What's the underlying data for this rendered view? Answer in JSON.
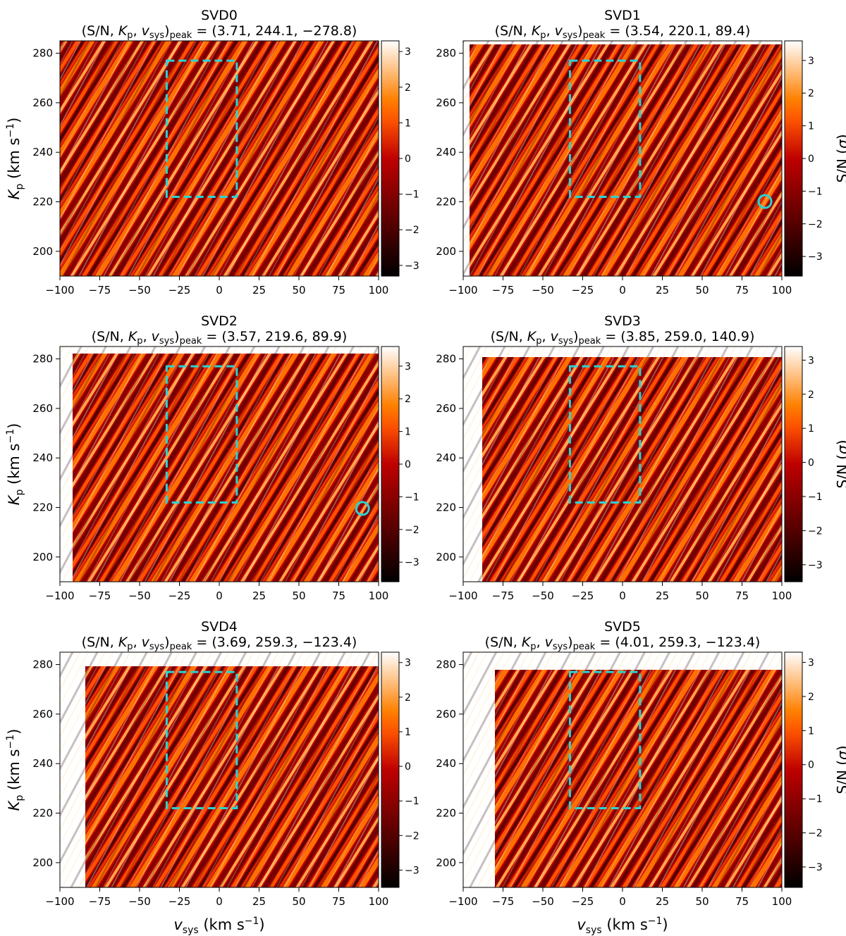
{
  "chart_data": [
    {
      "type": "heatmap",
      "title": "SVD0",
      "subtitle": {
        "prefix": "(S/N,  ",
        "kp": "K",
        "kp_sub": "p",
        "sep": ",  ",
        "v": "v",
        "v_sub": "sys",
        "close": ")",
        "peak": "peak",
        "values": " = (3.71,  244.1,  −278.8)"
      },
      "peak": {
        "sn": 3.71,
        "kp": 244.1,
        "vsys": -278.8
      },
      "xlim": [
        -100,
        100
      ],
      "ylim": [
        190,
        285
      ],
      "xticks": [
        -100,
        -75,
        -50,
        -25,
        0,
        25,
        50,
        75,
        100
      ],
      "yticks": [
        200,
        220,
        240,
        260,
        280
      ],
      "colorbar": {
        "ticks": [
          -3,
          -2,
          -1,
          0,
          1,
          2,
          3
        ],
        "range": [
          -3.3,
          3.3
        ],
        "colormap": "gist_heat"
      },
      "box": {
        "vsys": [
          -33,
          11
        ],
        "kp": [
          222,
          277
        ],
        "color": "#2ad4d4"
      },
      "marker": null,
      "ylabel": true,
      "xlabel": false,
      "cbar_label": false
    },
    {
      "type": "heatmap",
      "title": "SVD1",
      "subtitle": {
        "prefix": "(S/N,  ",
        "kp": "K",
        "kp_sub": "p",
        "sep": ",  ",
        "v": "v",
        "v_sub": "sys",
        "close": ")",
        "peak": "peak",
        "values": " = (3.54,  220.1,  89.4)"
      },
      "peak": {
        "sn": 3.54,
        "kp": 220.1,
        "vsys": 89.4
      },
      "xlim": [
        -100,
        100
      ],
      "ylim": [
        190,
        285
      ],
      "xticks": [
        -100,
        -75,
        -50,
        -25,
        0,
        25,
        50,
        75,
        100
      ],
      "yticks": [
        200,
        220,
        240,
        260,
        280
      ],
      "colorbar": {
        "ticks": [
          -3,
          -2,
          -1,
          0,
          1,
          2,
          3
        ],
        "range": [
          -3.6,
          3.6
        ],
        "colormap": "gist_heat"
      },
      "box": {
        "vsys": [
          -33,
          11
        ],
        "kp": [
          222,
          277
        ],
        "color": "#2ad4d4"
      },
      "marker": {
        "vsys": 89.4,
        "kp": 220.1
      },
      "ylabel": false,
      "xlabel": false,
      "cbar_label": true
    },
    {
      "type": "heatmap",
      "title": "SVD2",
      "subtitle": {
        "prefix": "(S/N,  ",
        "kp": "K",
        "kp_sub": "p",
        "sep": ",  ",
        "v": "v",
        "v_sub": "sys",
        "close": ")",
        "peak": "peak",
        "values": " = (3.57,  219.6,  89.9)"
      },
      "peak": {
        "sn": 3.57,
        "kp": 219.6,
        "vsys": 89.9
      },
      "xlim": [
        -100,
        100
      ],
      "ylim": [
        190,
        285
      ],
      "xticks": [
        -100,
        -75,
        -50,
        -25,
        0,
        25,
        50,
        75,
        100
      ],
      "yticks": [
        200,
        220,
        240,
        260,
        280
      ],
      "colorbar": {
        "ticks": [
          -3,
          -2,
          -1,
          0,
          1,
          2,
          3
        ],
        "range": [
          -3.6,
          3.6
        ],
        "colormap": "gist_heat"
      },
      "box": {
        "vsys": [
          -33,
          11
        ],
        "kp": [
          222,
          277
        ],
        "color": "#2ad4d4"
      },
      "marker": {
        "vsys": 89.9,
        "kp": 219.6
      },
      "ylabel": true,
      "xlabel": false,
      "cbar_label": false
    },
    {
      "type": "heatmap",
      "title": "SVD3",
      "subtitle": {
        "prefix": "(S/N,  ",
        "kp": "K",
        "kp_sub": "p",
        "sep": ",  ",
        "v": "v",
        "v_sub": "sys",
        "close": ")",
        "peak": "peak",
        "values": " = (3.85,  259.0,  140.9)"
      },
      "peak": {
        "sn": 3.85,
        "kp": 259.0,
        "vsys": 140.9
      },
      "xlim": [
        -100,
        100
      ],
      "ylim": [
        190,
        285
      ],
      "xticks": [
        -100,
        -75,
        -50,
        -25,
        0,
        25,
        50,
        75,
        100
      ],
      "yticks": [
        200,
        220,
        240,
        260,
        280
      ],
      "colorbar": {
        "ticks": [
          -3,
          -2,
          -1,
          0,
          1,
          2,
          3
        ],
        "range": [
          -3.5,
          3.4
        ],
        "colormap": "gist_heat"
      },
      "box": {
        "vsys": [
          -33,
          11
        ],
        "kp": [
          222,
          277
        ],
        "color": "#2ad4d4"
      },
      "marker": null,
      "ylabel": false,
      "xlabel": false,
      "cbar_label": true
    },
    {
      "type": "heatmap",
      "title": "SVD4",
      "subtitle": {
        "prefix": "(S/N,  ",
        "kp": "K",
        "kp_sub": "p",
        "sep": ",  ",
        "v": "v",
        "v_sub": "sys",
        "close": ")",
        "peak": "peak",
        "values": " = (3.69,  259.3,  −123.4)"
      },
      "peak": {
        "sn": 3.69,
        "kp": 259.3,
        "vsys": -123.4
      },
      "xlim": [
        -100,
        100
      ],
      "ylim": [
        190,
        285
      ],
      "xticks": [
        -100,
        -75,
        -50,
        -25,
        0,
        25,
        50,
        75,
        100
      ],
      "yticks": [
        200,
        220,
        240,
        260,
        280
      ],
      "colorbar": {
        "ticks": [
          -3,
          -2,
          -1,
          0,
          1,
          2,
          3
        ],
        "range": [
          -3.5,
          3.3
        ],
        "colormap": "gist_heat"
      },
      "box": {
        "vsys": [
          -33,
          11
        ],
        "kp": [
          222,
          277
        ],
        "color": "#2ad4d4"
      },
      "marker": null,
      "ylabel": true,
      "xlabel": true,
      "cbar_label": false
    },
    {
      "type": "heatmap",
      "title": "SVD5",
      "subtitle": {
        "prefix": "(S/N,  ",
        "kp": "K",
        "kp_sub": "p",
        "sep": ",  ",
        "v": "v",
        "v_sub": "sys",
        "close": ")",
        "peak": "peak",
        "values": " = (4.01,  259.3,  −123.4)"
      },
      "peak": {
        "sn": 4.01,
        "kp": 259.3,
        "vsys": -123.4
      },
      "xlim": [
        -100,
        100
      ],
      "ylim": [
        190,
        285
      ],
      "xticks": [
        -100,
        -75,
        -50,
        -25,
        0,
        25,
        50,
        75,
        100
      ],
      "yticks": [
        200,
        220,
        240,
        260,
        280
      ],
      "colorbar": {
        "ticks": [
          -3,
          -2,
          -1,
          0,
          1,
          2,
          3
        ],
        "range": [
          -3.6,
          3.3
        ],
        "colormap": "gist_heat"
      },
      "box": {
        "vsys": [
          -33,
          11
        ],
        "kp": [
          222,
          277
        ],
        "color": "#2ad4d4"
      },
      "marker": null,
      "ylabel": false,
      "xlabel": true,
      "cbar_label": true
    }
  ],
  "labels": {
    "ylabel": {
      "main": "K",
      "sub": "p",
      "unit": " (km s",
      "exp": "−1",
      "close": ")"
    },
    "xlabel": {
      "main": "v",
      "sub": "sys",
      "unit": " (km s",
      "exp": "−1",
      "close": ")"
    },
    "cbar_label": {
      "text": "S/N (",
      "sym": "σ",
      "close": ")"
    }
  }
}
